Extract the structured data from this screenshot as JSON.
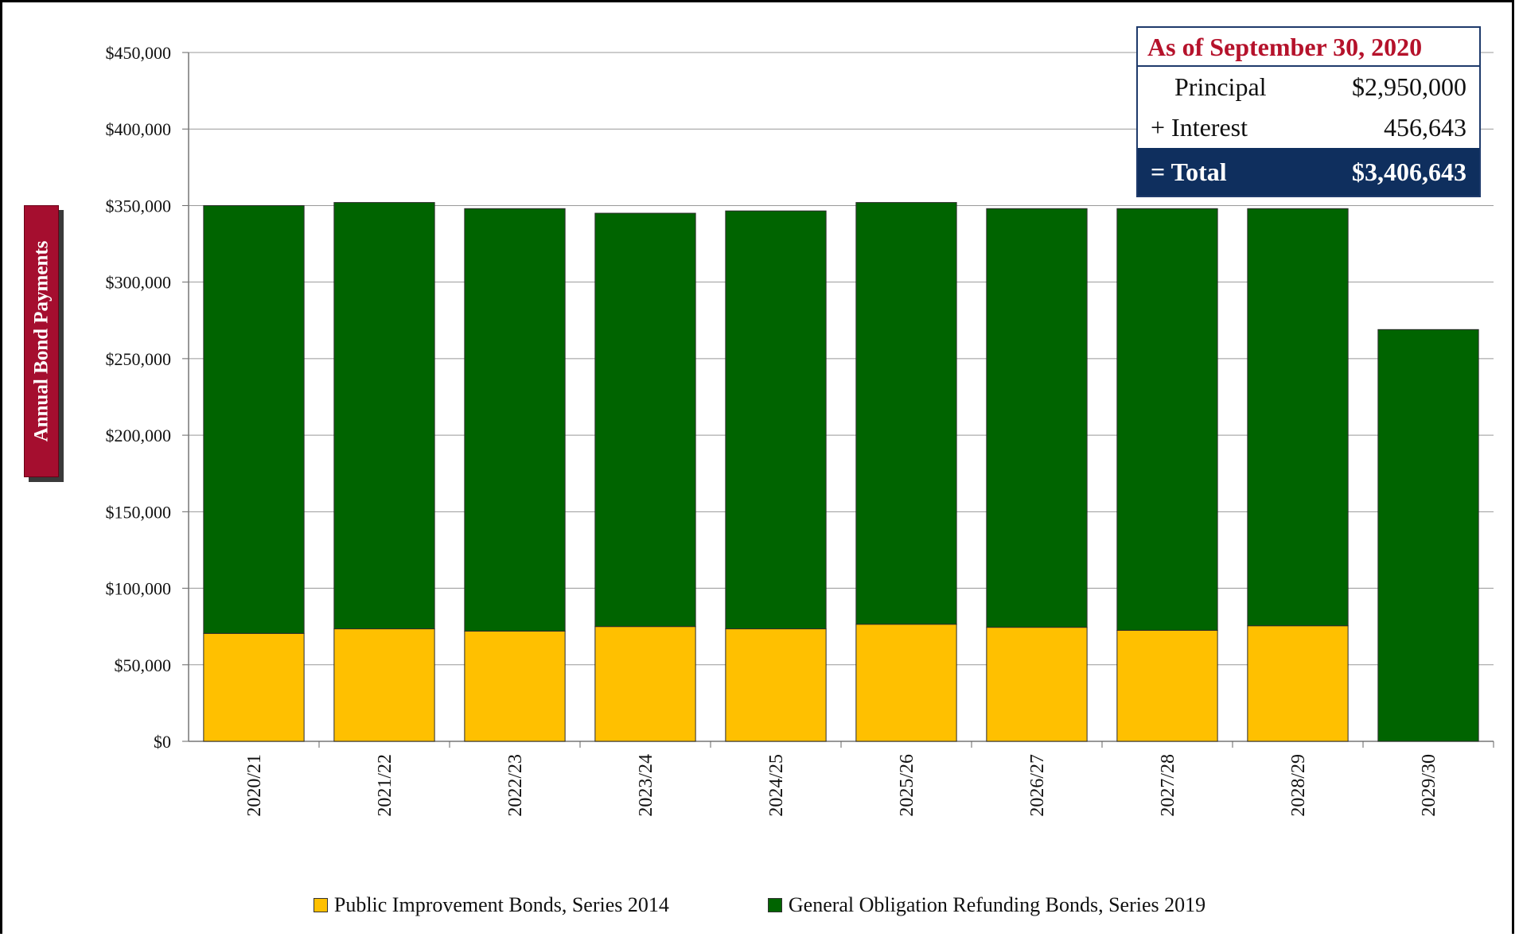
{
  "chart_data": {
    "type": "bar",
    "stacked": true,
    "categories": [
      "2020/21",
      "2021/22",
      "2022/23",
      "2023/24",
      "2024/25",
      "2025/26",
      "2026/27",
      "2027/28",
      "2028/29",
      "2029/30"
    ],
    "series": [
      {
        "name": "Public Improvement Bonds, Series 2014",
        "color": "#ffc000",
        "values": [
          70500,
          73500,
          72000,
          75000,
          73500,
          76500,
          74500,
          72500,
          75500,
          0
        ]
      },
      {
        "name": "General Obligation Refunding Bonds, Series 2019",
        "color": "#006400",
        "values": [
          279500,
          278500,
          276000,
          270000,
          273000,
          275500,
          273500,
          275500,
          272500,
          269000
        ]
      }
    ],
    "ylabel": "Annual Bond Payments",
    "ylim": [
      0,
      450000
    ],
    "yticks": [
      "$0",
      "$50,000",
      "$100,000",
      "$150,000",
      "$200,000",
      "$250,000",
      "$300,000",
      "$350,000",
      "$400,000",
      "$450,000"
    ],
    "grid": true,
    "legend_position": "bottom"
  },
  "summary": {
    "title": "As of September 30, 2020",
    "principal_label": "Principal",
    "principal_value": "$2,950,000",
    "interest_label": "+ Interest",
    "interest_value": "456,643",
    "total_label": "= Total",
    "total_value": "$3,406,643"
  }
}
